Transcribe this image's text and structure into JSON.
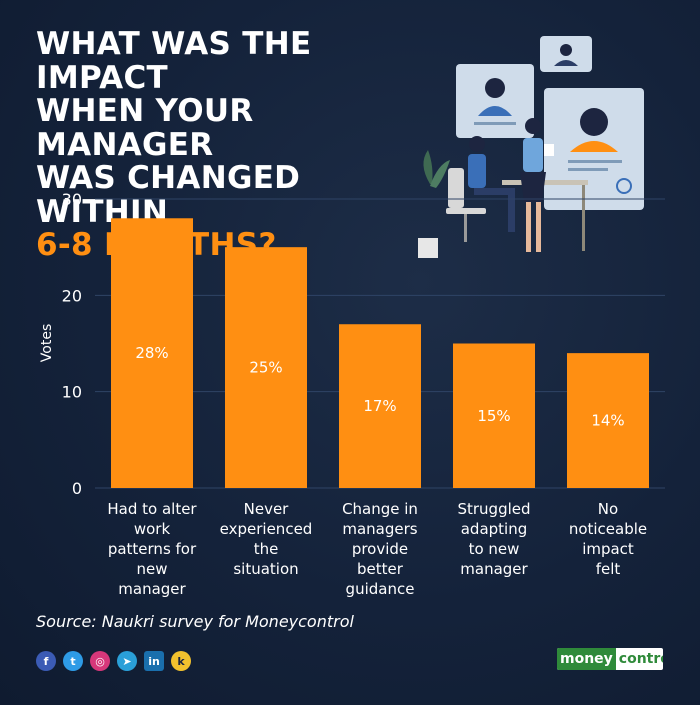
{
  "title_lines": [
    "WHAT WAS THE IMPACT",
    "WHEN YOUR MANAGER",
    "WAS CHANGED WITHIN"
  ],
  "title_accent": "6-8 MONTHS?",
  "source": "Source: Naukri survey for Moneycontrol",
  "brand": {
    "part1": "money",
    "part2": "control"
  },
  "social_icons": [
    "facebook-icon",
    "twitter-icon",
    "instagram-icon",
    "telegram-icon",
    "linkedin-icon",
    "koo-icon"
  ],
  "colors": {
    "bar": "#ff8f12",
    "accent": "#ff8f12",
    "background": "#14223a"
  },
  "chart_data": {
    "type": "bar",
    "categories": [
      "Had to alter work patterns for new manager",
      "Never experienced the situation",
      "Change in managers provide better guidance",
      "Struggled adapting to new manager",
      "No noticeable impact felt"
    ],
    "category_lines": [
      [
        "Had to alter",
        "work",
        "patterns for",
        "new",
        "manager"
      ],
      [
        "Never",
        "experienced",
        "the",
        "situation"
      ],
      [
        "Change in",
        "managers",
        "provide",
        "better",
        "guidance"
      ],
      [
        "Struggled",
        "adapting",
        "to new",
        "manager"
      ],
      [
        "No",
        "noticeable",
        "impact",
        "felt"
      ]
    ],
    "values": [
      28,
      25,
      17,
      15,
      14
    ],
    "data_labels": [
      "28%",
      "25%",
      "17%",
      "15%",
      "14%"
    ],
    "ylabel": "Votes",
    "ylim": [
      0,
      30
    ],
    "yticks": [
      0,
      10,
      20,
      30
    ],
    "grid": true
  }
}
